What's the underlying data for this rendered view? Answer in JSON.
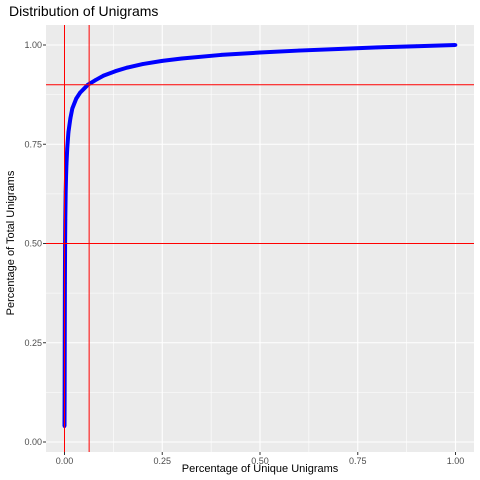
{
  "chart_data": {
    "type": "line",
    "title": "Distribution of Unigrams",
    "xlabel": "Percentage of Unique Unigrams",
    "ylabel": "Percentage of Total Unigrams",
    "xlim": [
      0,
      1
    ],
    "ylim": [
      0,
      1
    ],
    "xticks": [
      0,
      0.25,
      0.5,
      0.75,
      1
    ],
    "xtick_labels": [
      "0.00",
      "0.25",
      "0.50",
      "0.75",
      "1.00"
    ],
    "yticks": [
      0,
      0.25,
      0.5,
      0.75,
      1
    ],
    "ytick_labels": [
      "0.00",
      "0.25",
      "0.50",
      "0.75",
      "1.00"
    ],
    "grid": true,
    "legend": "none",
    "series": [
      {
        "color": "#0000ff",
        "x": [
          0.0,
          0.0003,
          0.0006,
          0.001,
          0.0015,
          0.002,
          0.003,
          0.004,
          0.005,
          0.007,
          0.01,
          0.015,
          0.02,
          0.03,
          0.04,
          0.05,
          0.06,
          0.08,
          0.1,
          0.13,
          0.16,
          0.2,
          0.25,
          0.3,
          0.4,
          0.5,
          0.6,
          0.7,
          0.8,
          0.9,
          1.0
        ],
        "y": [
          0.04,
          0.12,
          0.25,
          0.4,
          0.5,
          0.56,
          0.63,
          0.67,
          0.7,
          0.74,
          0.78,
          0.815,
          0.84,
          0.865,
          0.88,
          0.89,
          0.9,
          0.912,
          0.923,
          0.934,
          0.943,
          0.952,
          0.96,
          0.966,
          0.975,
          0.981,
          0.986,
          0.99,
          0.994,
          0.997,
          1.0
        ]
      }
    ],
    "reference_lines": [
      {
        "orientation": "horizontal",
        "value": 0.9,
        "color": "#ff0000"
      },
      {
        "orientation": "horizontal",
        "value": 0.5,
        "color": "#ff0000"
      },
      {
        "orientation": "vertical",
        "value": 0.0,
        "color": "#ff0000"
      },
      {
        "orientation": "vertical",
        "value": 0.063,
        "color": "#ff0000"
      }
    ],
    "colors": {
      "panel_background": "#ebebeb",
      "grid": "#ffffff",
      "line": "#0000ff",
      "reference": "#ff0000"
    }
  }
}
